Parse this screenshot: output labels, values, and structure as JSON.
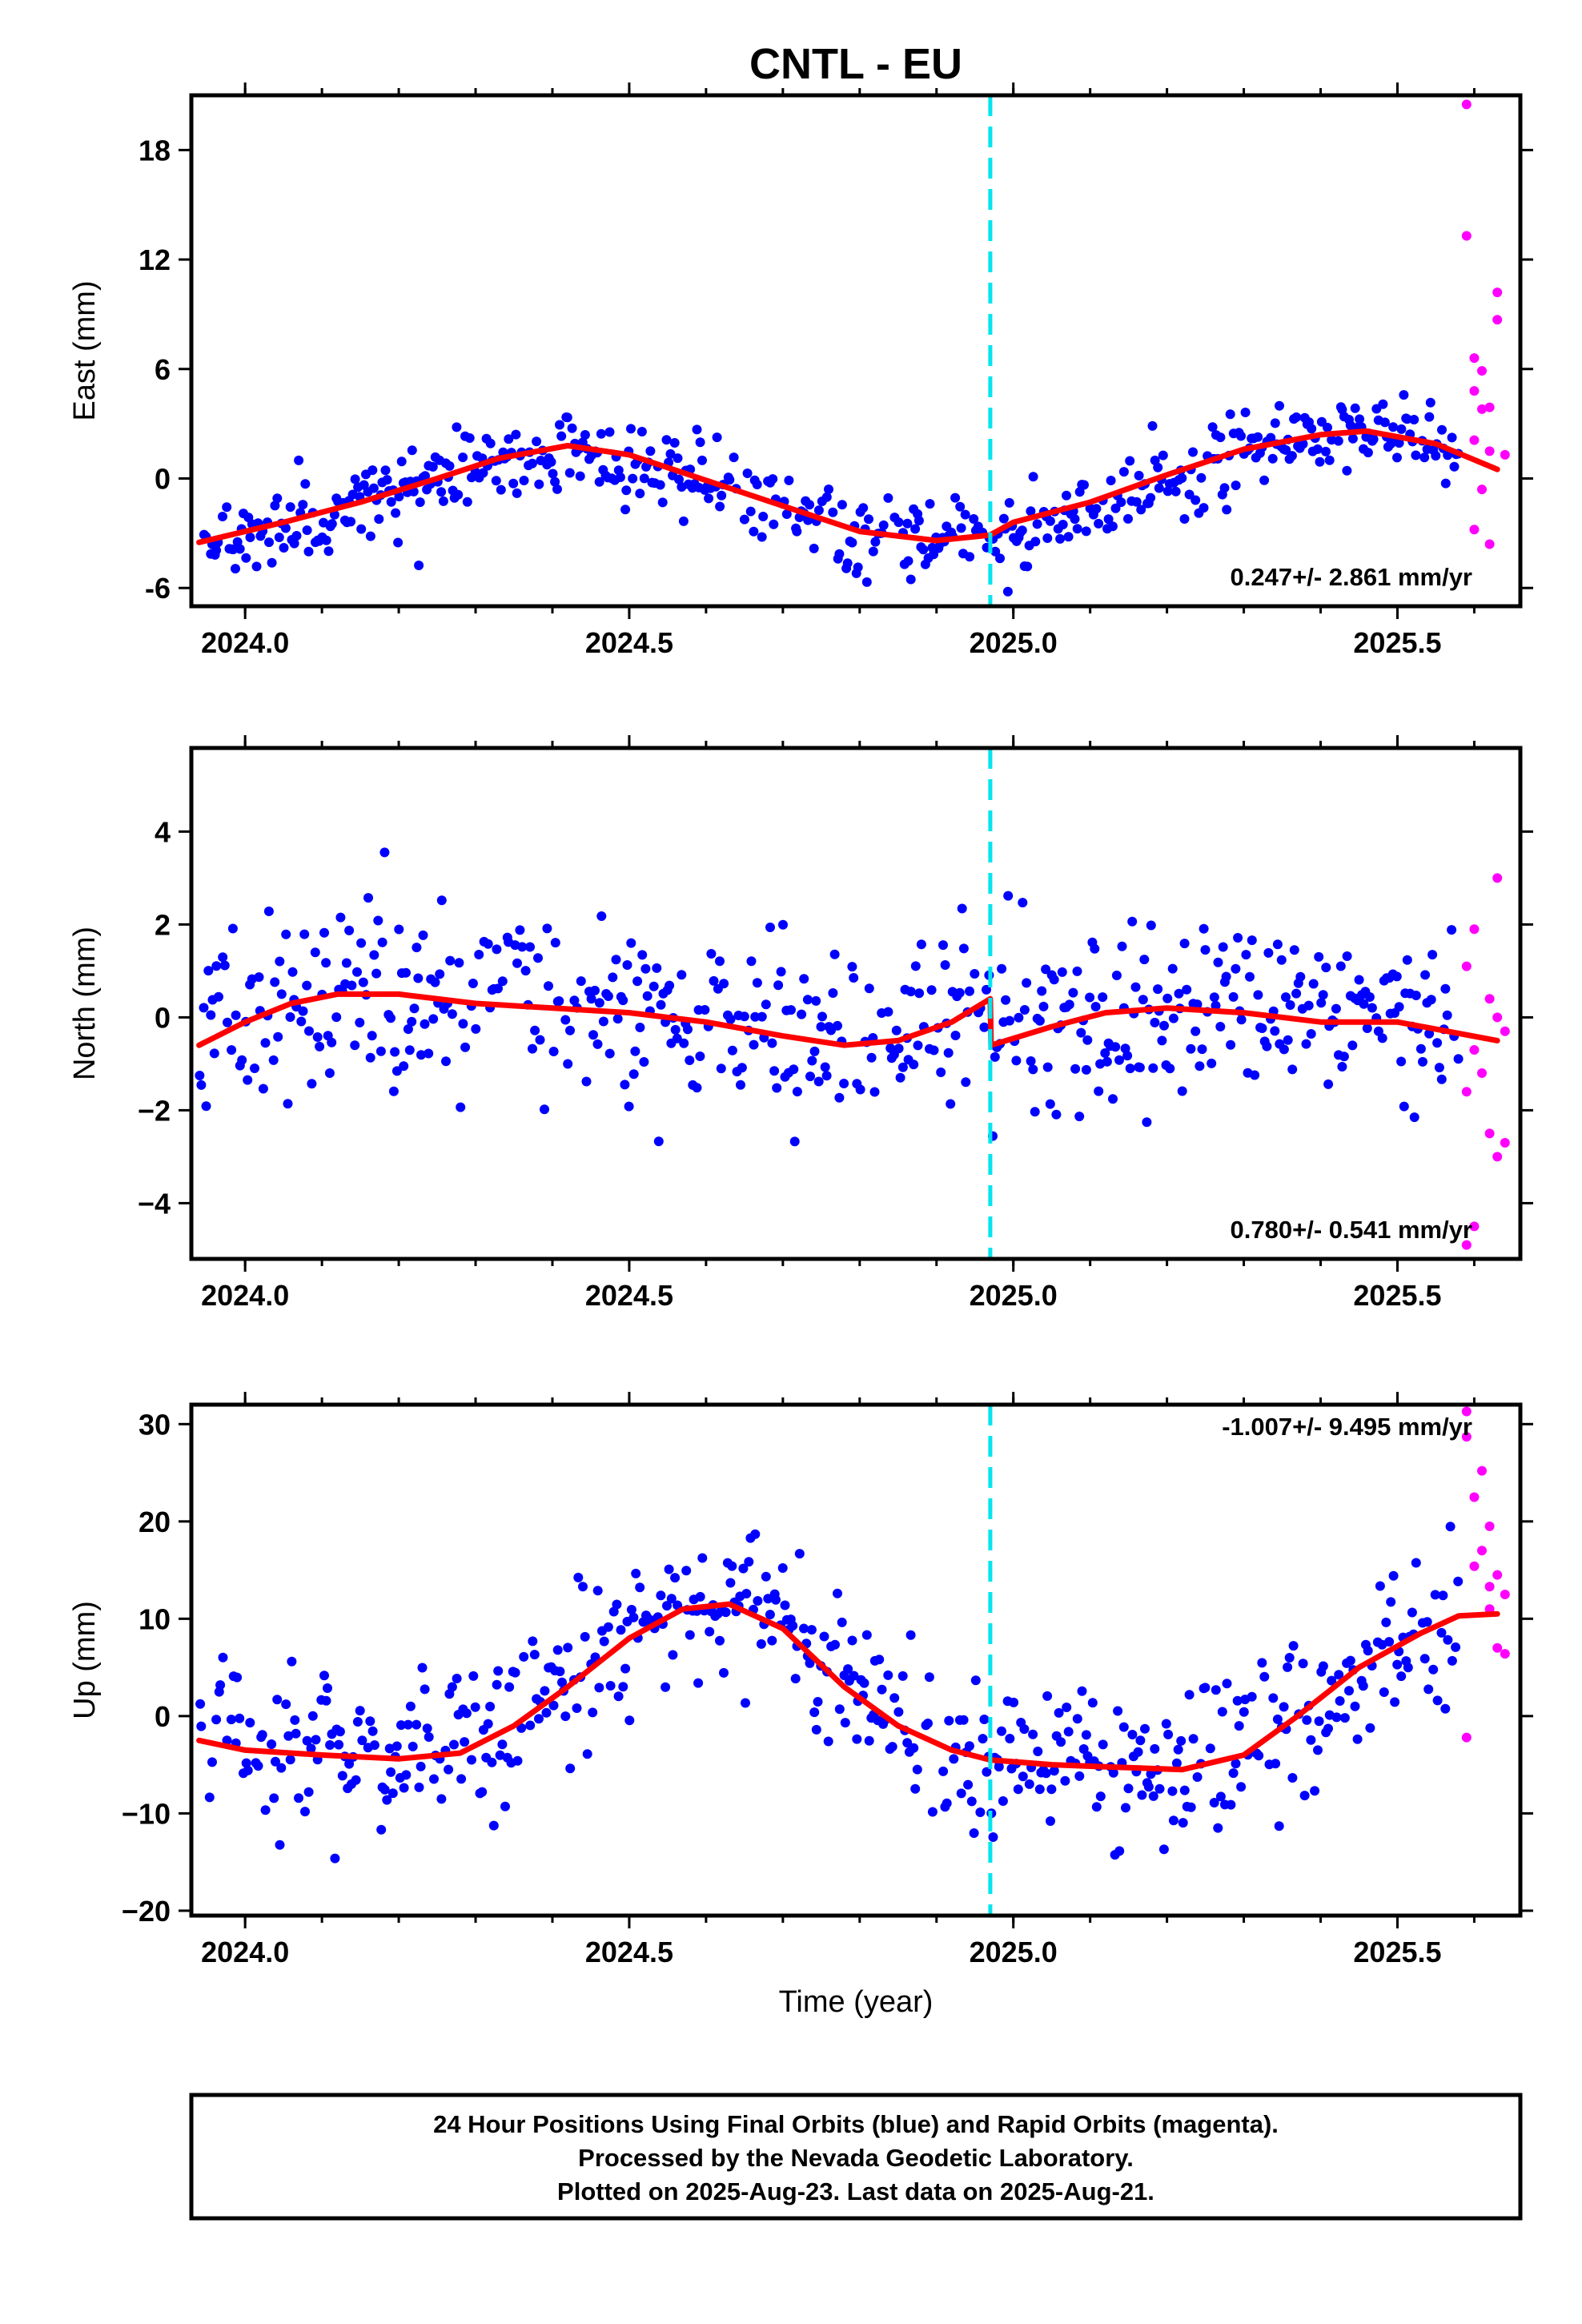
{
  "page": {
    "title": "CNTL - EU",
    "x_axis_label": "Time (year)"
  },
  "colors": {
    "final_orbits": "#0000ff",
    "rapid_orbits": "#ff00ff",
    "model_fit": "#ff0000",
    "event_line": "#00e5ee",
    "frame": "#000000"
  },
  "footer": {
    "line1": "24 Hour Positions Using Final Orbits (blue) and Rapid Orbits (magenta).",
    "line2": "Processed by the Nevada Geodetic Laboratory.",
    "line3": "Plotted on 2025-Aug-23. Last data on 2025-Aug-21."
  },
  "chart_data": [
    {
      "type": "scatter",
      "ylabel": "East (mm)",
      "xlim": [
        2023.93,
        2025.66
      ],
      "ylim": [
        -7,
        21
      ],
      "xticks": [
        2024.0,
        2024.5,
        2025.0,
        2025.5
      ],
      "xtick_labels": [
        "2024.0",
        "2024.5",
        "2025.0",
        "2025.5"
      ],
      "yticks": [
        -6,
        0,
        6,
        12,
        18
      ],
      "ytick_labels": [
        "-6",
        "0",
        "6",
        "12",
        "18"
      ],
      "rate_text": "0.247+/- 2.861 mm/yr",
      "rate_position": "bottom-right",
      "event_line_x": 2024.97,
      "model_fit": [
        [
          2023.94,
          -3.5
        ],
        [
          2024.05,
          -2.4
        ],
        [
          2024.15,
          -1.3
        ],
        [
          2024.25,
          0.0
        ],
        [
          2024.33,
          1.1
        ],
        [
          2024.42,
          1.8
        ],
        [
          2024.5,
          1.3
        ],
        [
          2024.6,
          -0.1
        ],
        [
          2024.7,
          -1.5
        ],
        [
          2024.8,
          -2.9
        ],
        [
          2024.9,
          -3.4
        ],
        [
          2024.97,
          -3.1
        ],
        [
          2025.0,
          -2.4
        ],
        [
          2025.1,
          -1.3
        ],
        [
          2025.2,
          0.2
        ],
        [
          2025.3,
          1.6
        ],
        [
          2025.4,
          2.4
        ],
        [
          2025.46,
          2.6
        ],
        [
          2025.55,
          1.9
        ],
        [
          2025.63,
          0.5
        ]
      ],
      "seasonal_center": [
        [
          2023.94,
          -3.5
        ],
        [
          2024.1,
          -2.0
        ],
        [
          2024.25,
          0.0
        ],
        [
          2024.42,
          1.8
        ],
        [
          2024.6,
          -0.1
        ],
        [
          2024.8,
          -2.9
        ],
        [
          2024.97,
          -3.1
        ],
        [
          2025.15,
          -0.6
        ],
        [
          2025.35,
          2.0
        ],
        [
          2025.5,
          2.5
        ],
        [
          2025.58,
          1.3
        ]
      ],
      "scatter_sd": 1.1,
      "final_x_range": [
        2023.94,
        2025.58
      ],
      "rapid_points": [
        [
          2025.59,
          20.5
        ],
        [
          2025.59,
          13.3
        ],
        [
          2025.6,
          6.6
        ],
        [
          2025.6,
          4.8
        ],
        [
          2025.61,
          3.8
        ],
        [
          2025.61,
          5.9
        ],
        [
          2025.62,
          1.5
        ],
        [
          2025.62,
          -3.6
        ],
        [
          2025.6,
          -2.8
        ],
        [
          2025.63,
          10.2
        ],
        [
          2025.63,
          8.7
        ],
        [
          2025.62,
          3.9
        ],
        [
          2025.64,
          1.3
        ],
        [
          2025.6,
          2.1
        ],
        [
          2025.61,
          -0.6
        ]
      ]
    },
    {
      "type": "scatter",
      "ylabel": "North (mm)",
      "xlim": [
        2023.93,
        2025.66
      ],
      "ylim": [
        -5.2,
        5.8
      ],
      "xticks": [
        2024.0,
        2024.5,
        2025.0,
        2025.5
      ],
      "xtick_labels": [
        "2024.0",
        "2024.5",
        "2025.0",
        "2025.5"
      ],
      "yticks": [
        -4,
        -2,
        0,
        2,
        4
      ],
      "ytick_labels": [
        "−4",
        "−2",
        "0",
        "2",
        "4"
      ],
      "rate_text": "0.780+/- 0.541 mm/yr",
      "rate_position": "bottom-right",
      "event_line_x": 2024.97,
      "model_fit": [
        [
          2023.94,
          -0.6
        ],
        [
          2024.0,
          -0.1
        ],
        [
          2024.06,
          0.3
        ],
        [
          2024.12,
          0.5
        ],
        [
          2024.2,
          0.5
        ],
        [
          2024.3,
          0.3
        ],
        [
          2024.4,
          0.2
        ],
        [
          2024.5,
          0.1
        ],
        [
          2024.6,
          -0.1
        ],
        [
          2024.7,
          -0.4
        ],
        [
          2024.78,
          -0.6
        ],
        [
          2024.85,
          -0.5
        ],
        [
          2024.92,
          -0.1
        ],
        [
          2024.97,
          0.4
        ],
        [
          2024.971,
          -0.6
        ],
        [
          2025.05,
          -0.2
        ],
        [
          2025.12,
          0.1
        ],
        [
          2025.2,
          0.2
        ],
        [
          2025.3,
          0.1
        ],
        [
          2025.4,
          -0.1
        ],
        [
          2025.5,
          -0.1
        ],
        [
          2025.63,
          -0.5
        ]
      ],
      "seasonal_center": [
        [
          2023.94,
          -0.4
        ],
        [
          2024.06,
          0.3
        ],
        [
          2024.2,
          0.5
        ],
        [
          2024.4,
          0.2
        ],
        [
          2024.6,
          -0.1
        ],
        [
          2024.78,
          -0.6
        ],
        [
          2024.92,
          -0.1
        ],
        [
          2024.97,
          0.4
        ],
        [
          2024.971,
          -0.6
        ],
        [
          2025.12,
          0.1
        ],
        [
          2025.3,
          0.1
        ],
        [
          2025.5,
          -0.1
        ],
        [
          2025.58,
          -0.3
        ]
      ],
      "scatter_sd": 1.0,
      "final_x_range": [
        2023.94,
        2025.58
      ],
      "rapid_points": [
        [
          2025.63,
          3.0
        ],
        [
          2025.6,
          1.9
        ],
        [
          2025.59,
          1.1
        ],
        [
          2025.62,
          0.4
        ],
        [
          2025.63,
          0.0
        ],
        [
          2025.6,
          -0.7
        ],
        [
          2025.61,
          -1.2
        ],
        [
          2025.59,
          -1.6
        ],
        [
          2025.62,
          -2.5
        ],
        [
          2025.64,
          -2.7
        ],
        [
          2025.63,
          -3.0
        ],
        [
          2025.6,
          -4.5
        ],
        [
          2025.59,
          -4.9
        ],
        [
          2025.64,
          -0.3
        ]
      ]
    },
    {
      "type": "scatter",
      "ylabel": "Up (mm)",
      "xlim": [
        2023.93,
        2025.66
      ],
      "ylim": [
        -20.5,
        32
      ],
      "xticks": [
        2024.0,
        2024.5,
        2025.0,
        2025.5
      ],
      "xtick_labels": [
        "2024.0",
        "2024.5",
        "2025.0",
        "2025.5"
      ],
      "yticks": [
        -20,
        -10,
        0,
        10,
        20,
        30
      ],
      "ytick_labels": [
        "−20",
        "−10",
        "0",
        "10",
        "20",
        "30"
      ],
      "rate_text": "-1.007+/- 9.495 mm/yr",
      "rate_position": "top-right",
      "event_line_x": 2024.97,
      "model_fit": [
        [
          2023.94,
          -2.5
        ],
        [
          2024.0,
          -3.5
        ],
        [
          2024.1,
          -4.0
        ],
        [
          2024.2,
          -4.4
        ],
        [
          2024.28,
          -3.8
        ],
        [
          2024.35,
          -1.0
        ],
        [
          2024.42,
          3.0
        ],
        [
          2024.5,
          8.0
        ],
        [
          2024.57,
          11.0
        ],
        [
          2024.63,
          11.5
        ],
        [
          2024.7,
          9.0
        ],
        [
          2024.78,
          3.0
        ],
        [
          2024.85,
          -1.0
        ],
        [
          2024.92,
          -3.5
        ],
        [
          2024.97,
          -4.5
        ],
        [
          2025.05,
          -5.0
        ],
        [
          2025.15,
          -5.3
        ],
        [
          2025.22,
          -5.5
        ],
        [
          2025.3,
          -4.0
        ],
        [
          2025.37,
          0.0
        ],
        [
          2025.45,
          5.0
        ],
        [
          2025.53,
          8.5
        ],
        [
          2025.58,
          10.3
        ],
        [
          2025.63,
          10.5
        ]
      ],
      "seasonal_center": [
        [
          2023.94,
          -1.0
        ],
        [
          2024.1,
          -3.5
        ],
        [
          2024.2,
          -4.0
        ],
        [
          2024.35,
          -1.0
        ],
        [
          2024.5,
          8.0
        ],
        [
          2024.63,
          13.0
        ],
        [
          2024.72,
          9.0
        ],
        [
          2024.85,
          -1.0
        ],
        [
          2024.97,
          -4.5
        ],
        [
          2025.2,
          -6.0
        ],
        [
          2025.37,
          0.0
        ],
        [
          2025.5,
          6.5
        ],
        [
          2025.58,
          11.0
        ]
      ],
      "scatter_sd": 4.0,
      "final_x_range": [
        2023.94,
        2025.58
      ],
      "rapid_points": [
        [
          2025.59,
          31.3
        ],
        [
          2025.59,
          28.7
        ],
        [
          2025.61,
          25.2
        ],
        [
          2025.6,
          22.5
        ],
        [
          2025.62,
          19.5
        ],
        [
          2025.61,
          17.0
        ],
        [
          2025.6,
          15.4
        ],
        [
          2025.63,
          14.5
        ],
        [
          2025.62,
          13.3
        ],
        [
          2025.64,
          12.5
        ],
        [
          2025.62,
          11.0
        ],
        [
          2025.63,
          7.0
        ],
        [
          2025.64,
          6.4
        ],
        [
          2025.59,
          -2.2
        ]
      ]
    }
  ]
}
